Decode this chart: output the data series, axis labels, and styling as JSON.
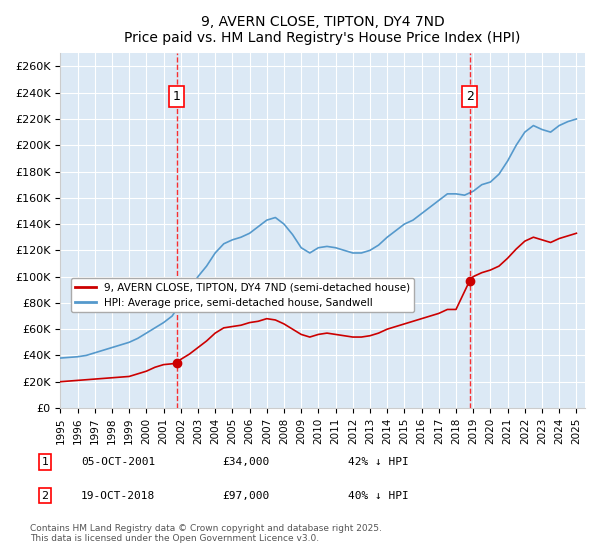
{
  "title": "9, AVERN CLOSE, TIPTON, DY4 7ND",
  "subtitle": "Price paid vs. HM Land Registry's House Price Index (HPI)",
  "ylabel_ticks": [
    "£0",
    "£20K",
    "£40K",
    "£60K",
    "£80K",
    "£100K",
    "£120K",
    "£140K",
    "£160K",
    "£180K",
    "£200K",
    "£220K",
    "£240K",
    "£260K"
  ],
  "ytick_values": [
    0,
    20000,
    40000,
    60000,
    80000,
    100000,
    120000,
    140000,
    160000,
    180000,
    200000,
    220000,
    240000,
    260000
  ],
  "ylim": [
    0,
    270000
  ],
  "xlim_start": 1995,
  "xlim_end": 2025.5,
  "background_color": "#dce9f5",
  "grid_color": "#ffffff",
  "marker1_date": 2001.77,
  "marker2_date": 2018.8,
  "marker1_price": 34000,
  "marker2_price": 97000,
  "legend_label_red": "9, AVERN CLOSE, TIPTON, DY4 7ND (semi-detached house)",
  "legend_label_blue": "HPI: Average price, semi-detached house, Sandwell",
  "annotation1_text": "05-OCT-2001       £34,000         42% ↓ HPI",
  "annotation2_text": "19-OCT-2018       £97,000         40% ↓ HPI",
  "footer": "Contains HM Land Registry data © Crown copyright and database right 2025.\nThis data is licensed under the Open Government Licence v3.0.",
  "red_color": "#cc0000",
  "blue_color": "#5599cc",
  "hpi_x": [
    1995,
    1995.5,
    1996,
    1996.5,
    1997,
    1997.5,
    1998,
    1998.5,
    1999,
    1999.5,
    2000,
    2000.5,
    2001,
    2001.5,
    2002,
    2002.5,
    2003,
    2003.5,
    2004,
    2004.5,
    2005,
    2005.5,
    2006,
    2006.5,
    2007,
    2007.5,
    2008,
    2008.5,
    2009,
    2009.5,
    2010,
    2010.5,
    2011,
    2011.5,
    2012,
    2012.5,
    2013,
    2013.5,
    2014,
    2014.5,
    2015,
    2015.5,
    2016,
    2016.5,
    2017,
    2017.5,
    2018,
    2018.5,
    2019,
    2019.5,
    2020,
    2020.5,
    2021,
    2021.5,
    2022,
    2022.5,
    2023,
    2023.5,
    2024,
    2024.5,
    2025
  ],
  "hpi_y": [
    38000,
    38500,
    39000,
    40000,
    42000,
    44000,
    46000,
    48000,
    50000,
    53000,
    57000,
    61000,
    65000,
    70000,
    80000,
    90000,
    100000,
    108000,
    118000,
    125000,
    128000,
    130000,
    133000,
    138000,
    143000,
    145000,
    140000,
    132000,
    122000,
    118000,
    122000,
    123000,
    122000,
    120000,
    118000,
    118000,
    120000,
    124000,
    130000,
    135000,
    140000,
    143000,
    148000,
    153000,
    158000,
    163000,
    163000,
    162000,
    165000,
    170000,
    172000,
    178000,
    188000,
    200000,
    210000,
    215000,
    212000,
    210000,
    215000,
    218000,
    220000
  ],
  "red_x": [
    1995,
    1995.5,
    1996,
    1996.5,
    1997,
    1997.5,
    1998,
    1998.5,
    1999,
    1999.5,
    2000,
    2000.5,
    2001,
    2001.77,
    2002,
    2002.5,
    2003,
    2003.5,
    2004,
    2004.5,
    2005,
    2005.5,
    2006,
    2006.5,
    2007,
    2007.5,
    2008,
    2008.5,
    2009,
    2009.5,
    2010,
    2010.5,
    2011,
    2011.5,
    2012,
    2012.5,
    2013,
    2013.5,
    2014,
    2014.5,
    2015,
    2015.5,
    2016,
    2016.5,
    2017,
    2017.5,
    2018,
    2018.8,
    2019,
    2019.5,
    2020,
    2020.5,
    2021,
    2021.5,
    2022,
    2022.5,
    2023,
    2023.5,
    2024,
    2024.5,
    2025
  ],
  "red_y": [
    20000,
    20500,
    21000,
    21500,
    22000,
    22500,
    23000,
    23500,
    24000,
    26000,
    28000,
    31000,
    33000,
    34000,
    37000,
    41000,
    46000,
    51000,
    57000,
    61000,
    62000,
    63000,
    65000,
    66000,
    68000,
    67000,
    64000,
    60000,
    56000,
    54000,
    56000,
    57000,
    56000,
    55000,
    54000,
    54000,
    55000,
    57000,
    60000,
    62000,
    64000,
    66000,
    68000,
    70000,
    72000,
    75000,
    75000,
    97000,
    100000,
    103000,
    105000,
    108000,
    114000,
    121000,
    127000,
    130000,
    128000,
    126000,
    129000,
    131000,
    133000
  ],
  "xtick_years": [
    1995,
    1996,
    1997,
    1998,
    1999,
    2000,
    2001,
    2002,
    2003,
    2004,
    2005,
    2006,
    2007,
    2008,
    2009,
    2010,
    2011,
    2012,
    2013,
    2014,
    2015,
    2016,
    2017,
    2018,
    2019,
    2020,
    2021,
    2022,
    2023,
    2024,
    2025
  ]
}
